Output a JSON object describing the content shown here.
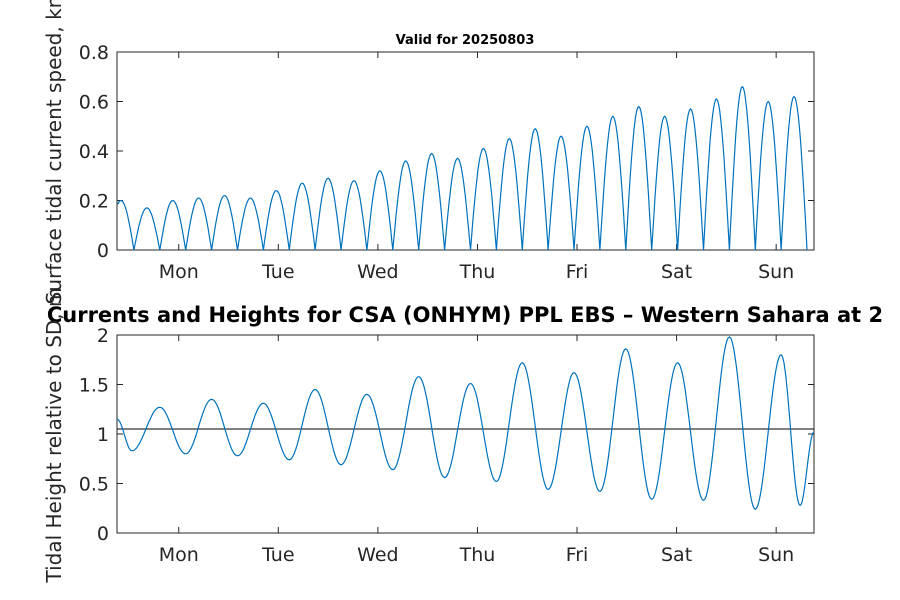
{
  "chart_data": [
    {
      "type": "line",
      "title": "Valid for 20250803",
      "ylabel": "Surface tidal current speed, kn",
      "xlabel": "",
      "xlim": [
        0,
        7
      ],
      "ylim": [
        0,
        0.8
      ],
      "yticks": [
        "0",
        "0.2",
        "0.4",
        "0.6",
        "0.8"
      ],
      "xticks": [
        {
          "label": "Mon",
          "value": 0.62
        },
        {
          "label": "Tue",
          "value": 1.62
        },
        {
          "label": "Wed",
          "value": 2.62
        },
        {
          "label": "Thu",
          "value": 3.62
        },
        {
          "label": "Fri",
          "value": 4.62
        },
        {
          "label": "Sat",
          "value": 5.62
        },
        {
          "label": "Sun",
          "value": 6.62
        }
      ],
      "grid": false,
      "color": "#0072BD",
      "series": [
        {
          "x": [
            0.04,
            0.3,
            0.56,
            0.82,
            1.08,
            1.34,
            1.6,
            1.86,
            2.12,
            2.38,
            2.64,
            2.9,
            3.16,
            3.42,
            3.68,
            3.94,
            4.2,
            4.46,
            4.72,
            4.98,
            5.24,
            5.5,
            5.76,
            6.02,
            6.28,
            6.54,
            6.8
          ],
          "values": [
            0.2,
            0.17,
            0.2,
            0.21,
            0.22,
            0.21,
            0.24,
            0.27,
            0.29,
            0.28,
            0.32,
            0.36,
            0.39,
            0.37,
            0.41,
            0.45,
            0.49,
            0.46,
            0.5,
            0.54,
            0.58,
            0.54,
            0.57,
            0.61,
            0.66,
            0.6,
            0.62
          ]
        }
      ]
    },
    {
      "type": "line",
      "title": "Currents and Heights for CSA (ONHYM) PPL EBS  – Western Sahara at 2",
      "ylabel": "Tidal Height relative to SD, m",
      "xlabel": "",
      "xlim": [
        0,
        7
      ],
      "ylim": [
        0,
        2
      ],
      "yticks": [
        "0",
        "0.5",
        "1",
        "1.5",
        "2"
      ],
      "xticks": [
        {
          "label": "Mon",
          "value": 0.62
        },
        {
          "label": "Tue",
          "value": 1.62
        },
        {
          "label": "Wed",
          "value": 2.62
        },
        {
          "label": "Thu",
          "value": 3.62
        },
        {
          "label": "Fri",
          "value": 4.62
        },
        {
          "label": "Sat",
          "value": 5.62
        },
        {
          "label": "Sun",
          "value": 6.62
        }
      ],
      "grid": false,
      "color": "#0072BD",
      "reference_line": 1.05,
      "series": [
        {
          "x": [
            0.0,
            0.15,
            0.43,
            0.69,
            0.95,
            1.21,
            1.47,
            1.73,
            1.99,
            2.25,
            2.51,
            2.77,
            3.03,
            3.29,
            3.55,
            3.81,
            4.07,
            4.33,
            4.59,
            4.85,
            5.11,
            5.37,
            5.63,
            5.89,
            6.15,
            6.41,
            6.67,
            6.86,
            7.0
          ],
          "values": [
            1.15,
            0.83,
            1.27,
            0.8,
            1.35,
            0.78,
            1.31,
            0.74,
            1.45,
            0.69,
            1.4,
            0.64,
            1.58,
            0.56,
            1.51,
            0.52,
            1.72,
            0.44,
            1.62,
            0.42,
            1.86,
            0.34,
            1.72,
            0.33,
            1.98,
            0.24,
            1.8,
            0.28,
            1.02
          ]
        }
      ]
    }
  ]
}
